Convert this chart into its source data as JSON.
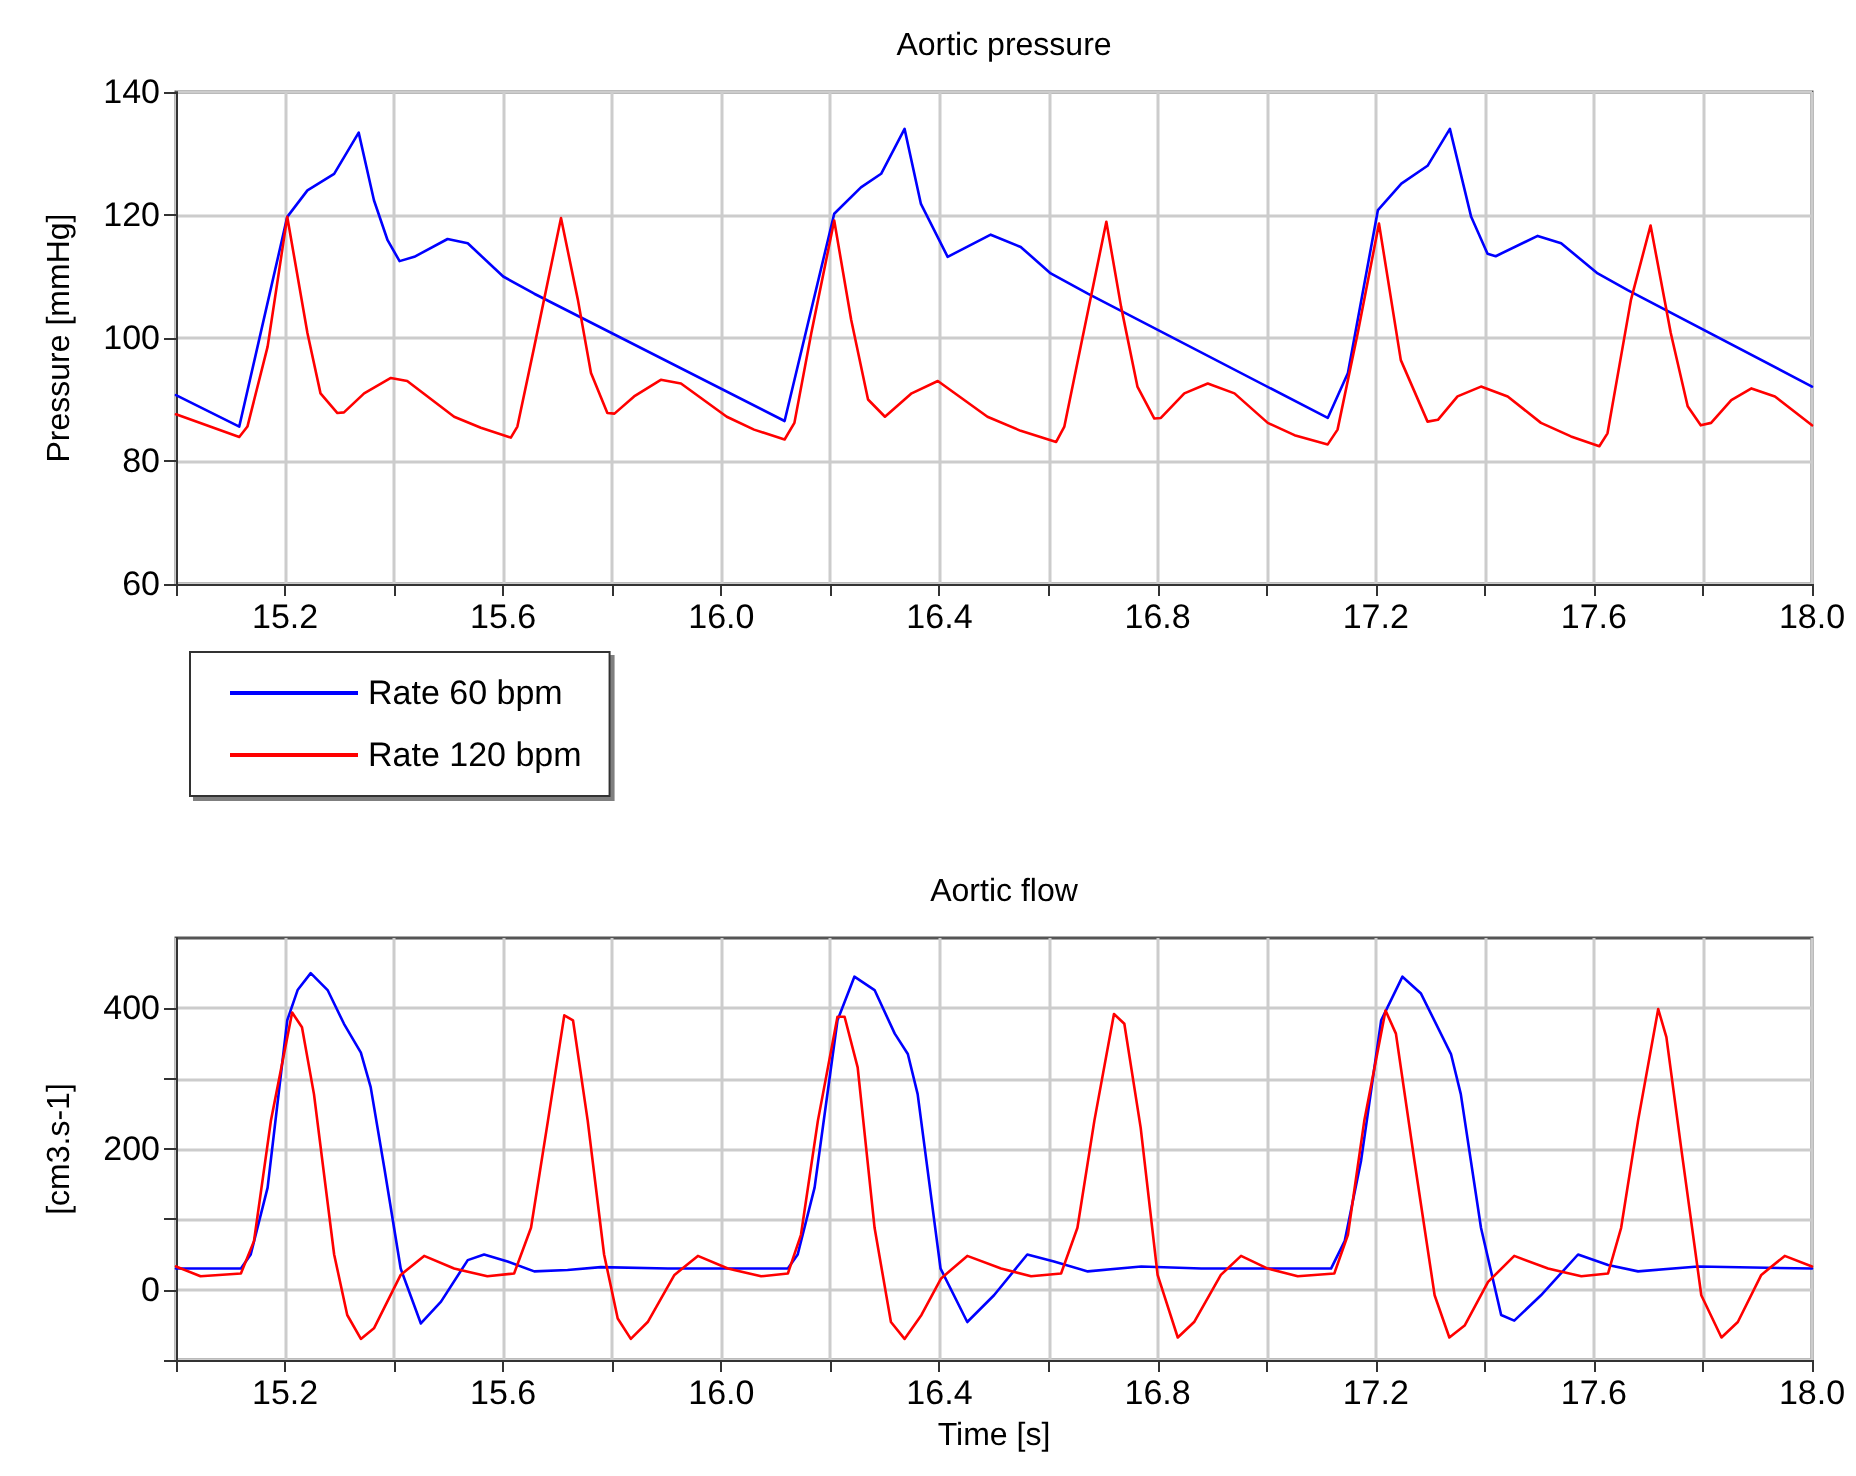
{
  "chart_data": [
    {
      "type": "line",
      "title": "Aortic pressure",
      "ylabel": "Pressure [mmHg]",
      "xlim": [
        15.0,
        18.0
      ],
      "ylim": [
        60,
        140
      ],
      "xticks": [
        {
          "value": 15.0,
          "label": null
        },
        {
          "value": 15.2,
          "label": "15.2"
        },
        {
          "value": 15.4,
          "label": null
        },
        {
          "value": 15.6,
          "label": "15.6"
        },
        {
          "value": 15.8,
          "label": null
        },
        {
          "value": 16.0,
          "label": "16.0"
        },
        {
          "value": 16.2,
          "label": null
        },
        {
          "value": 16.4,
          "label": "16.4"
        },
        {
          "value": 16.6,
          "label": null
        },
        {
          "value": 16.8,
          "label": "16.8"
        },
        {
          "value": 17.0,
          "label": null
        },
        {
          "value": 17.2,
          "label": "17.2"
        },
        {
          "value": 17.4,
          "label": null
        },
        {
          "value": 17.6,
          "label": "17.6"
        },
        {
          "value": 17.8,
          "label": null
        },
        {
          "value": 18.0,
          "label": "18.0"
        }
      ],
      "yticks": [
        60,
        80,
        100,
        120,
        140
      ],
      "grid": true,
      "legend": "bottom left",
      "marker": "none",
      "series": [
        {
          "name": "Rate 60 bpm",
          "color": "#0000ff",
          "x": [
            15.0,
            15.116,
            15.204,
            15.241,
            15.29,
            15.335,
            15.363,
            15.388,
            15.41,
            15.437,
            15.498,
            15.535,
            15.6,
            15.657,
            16.116,
            16.207,
            16.256,
            16.293,
            16.336,
            16.366,
            16.415,
            16.494,
            16.549,
            16.604,
            16.672,
            17.112,
            17.149,
            17.204,
            17.247,
            17.295,
            17.336,
            17.375,
            17.405,
            17.42,
            17.497,
            17.54,
            17.607,
            17.662,
            18.0
          ],
          "values": [
            90.7,
            85.6,
            119.7,
            124.0,
            126.7,
            133.4,
            122.4,
            115.9,
            112.5,
            113.2,
            116.1,
            115.4,
            110.0,
            107.2,
            86.5,
            120.2,
            124.5,
            126.7,
            134.0,
            121.8,
            113.2,
            116.8,
            114.8,
            110.5,
            107.2,
            87.0,
            94.3,
            120.8,
            125.1,
            128.0,
            134.0,
            119.7,
            113.7,
            113.3,
            116.6,
            115.4,
            110.5,
            107.8,
            92.1
          ]
        },
        {
          "name": "Rate 120 bpm",
          "color": "#ff0000",
          "x": [
            15.0,
            15.116,
            15.131,
            15.168,
            15.204,
            15.241,
            15.265,
            15.296,
            15.308,
            15.345,
            15.394,
            15.424,
            15.51,
            15.559,
            15.614,
            15.626,
            15.657,
            15.706,
            15.737,
            15.761,
            15.791,
            15.804,
            15.84,
            15.889,
            15.926,
            16.01,
            16.06,
            16.116,
            16.134,
            16.165,
            16.207,
            16.238,
            16.269,
            16.3,
            16.349,
            16.397,
            16.488,
            16.549,
            16.614,
            16.629,
            16.659,
            16.706,
            16.733,
            16.763,
            16.794,
            16.806,
            16.849,
            16.892,
            16.941,
            17.002,
            17.051,
            17.112,
            17.13,
            17.167,
            17.206,
            17.246,
            17.295,
            17.314,
            17.35,
            17.393,
            17.442,
            17.503,
            17.558,
            17.61,
            17.625,
            17.668,
            17.704,
            17.741,
            17.772,
            17.796,
            17.815,
            17.852,
            17.889,
            17.932,
            18.0
          ],
          "values": [
            87.6,
            83.9,
            85.6,
            98.6,
            119.7,
            100.8,
            91.0,
            87.8,
            87.9,
            91.0,
            93.5,
            93.0,
            87.2,
            85.4,
            83.8,
            85.6,
            98.6,
            119.5,
            106.2,
            94.3,
            87.8,
            87.7,
            90.5,
            93.2,
            92.6,
            87.2,
            85.1,
            83.5,
            86.2,
            100.8,
            119.1,
            103.0,
            90.0,
            87.2,
            91.0,
            93.0,
            87.2,
            84.9,
            83.1,
            85.6,
            98.6,
            118.9,
            105.1,
            92.1,
            86.9,
            87.0,
            91.0,
            92.6,
            91.0,
            86.2,
            84.2,
            82.7,
            85.1,
            100.8,
            118.6,
            96.4,
            86.4,
            86.7,
            90.5,
            92.1,
            90.5,
            86.2,
            84.0,
            82.4,
            84.5,
            106.2,
            118.3,
            100.8,
            88.9,
            85.8,
            86.2,
            89.9,
            91.8,
            90.5,
            85.8
          ]
        }
      ]
    },
    {
      "type": "line",
      "title": "Aortic flow",
      "xlabel": "Time [s]",
      "ylabel": "[cm3.s-1]",
      "xlim": [
        15.0,
        18.0
      ],
      "ylim": [
        -100,
        500
      ],
      "xticks": [
        {
          "value": 15.0,
          "label": null
        },
        {
          "value": 15.2,
          "label": "15.2"
        },
        {
          "value": 15.4,
          "label": null
        },
        {
          "value": 15.6,
          "label": "15.6"
        },
        {
          "value": 15.8,
          "label": null
        },
        {
          "value": 16.0,
          "label": "16.0"
        },
        {
          "value": 16.2,
          "label": null
        },
        {
          "value": 16.4,
          "label": "16.4"
        },
        {
          "value": 16.6,
          "label": null
        },
        {
          "value": 16.8,
          "label": "16.8"
        },
        {
          "value": 17.0,
          "label": null
        },
        {
          "value": 17.2,
          "label": "17.2"
        },
        {
          "value": 17.4,
          "label": null
        },
        {
          "value": 17.6,
          "label": "17.6"
        },
        {
          "value": 17.8,
          "label": null
        },
        {
          "value": 18.0,
          "label": "18.0"
        }
      ],
      "yticks": [
        {
          "value": -100,
          "label": null
        },
        0,
        {
          "value": 100,
          "label": null
        },
        200,
        {
          "value": 300,
          "label": null
        },
        400
      ],
      "grid": true,
      "legend": false,
      "marker": "none",
      "series": [
        {
          "color": "#0000ff",
          "x": [
            15.0,
            15.119,
            15.137,
            15.168,
            15.204,
            15.223,
            15.247,
            15.278,
            15.308,
            15.339,
            15.357,
            15.382,
            15.412,
            15.449,
            15.486,
            15.535,
            15.565,
            15.608,
            15.657,
            15.718,
            15.779,
            15.902,
            16.122,
            16.14,
            16.171,
            16.213,
            16.244,
            16.281,
            16.318,
            16.342,
            16.36,
            16.402,
            16.451,
            16.5,
            16.561,
            16.61,
            16.672,
            16.77,
            16.88,
            17.118,
            17.143,
            17.173,
            17.21,
            17.249,
            17.283,
            17.338,
            17.356,
            17.393,
            17.43,
            17.454,
            17.503,
            17.571,
            17.626,
            17.681,
            17.791,
            18.0
          ],
          "values": [
            30,
            30,
            50,
            145,
            383,
            426,
            450,
            426,
            378,
            337,
            288,
            173,
            30,
            -48,
            -17,
            42,
            50,
            40,
            26,
            28,
            32,
            30,
            30,
            50,
            145,
            383,
            445,
            426,
            364,
            335,
            278,
            30,
            -46,
            -8,
            50,
            40,
            26,
            33,
            30,
            30,
            69,
            183,
            383,
            445,
            421,
            335,
            278,
            88,
            -36,
            -44,
            -8,
            50,
            35,
            26,
            33,
            30
          ]
        },
        {
          "color": "#ff0000",
          "x": [
            15.0,
            15.045,
            15.119,
            15.143,
            15.174,
            15.213,
            15.231,
            15.253,
            15.29,
            15.314,
            15.339,
            15.363,
            15.412,
            15.455,
            15.51,
            15.571,
            15.62,
            15.651,
            15.682,
            15.712,
            15.728,
            15.755,
            15.785,
            15.81,
            15.834,
            15.865,
            15.914,
            15.957,
            16.012,
            16.073,
            16.122,
            16.146,
            16.177,
            16.213,
            16.226,
            16.25,
            16.281,
            16.311,
            16.336,
            16.367,
            16.403,
            16.451,
            16.513,
            16.568,
            16.623,
            16.653,
            16.684,
            16.72,
            16.739,
            16.769,
            16.8,
            16.837,
            16.867,
            16.916,
            16.953,
            17.002,
            17.057,
            17.124,
            17.149,
            17.179,
            17.218,
            17.237,
            17.271,
            17.308,
            17.335,
            17.363,
            17.406,
            17.454,
            17.516,
            17.577,
            17.626,
            17.65,
            17.681,
            17.718,
            17.733,
            17.76,
            17.797,
            17.834,
            17.864,
            17.907,
            17.95,
            18.0
          ],
          "values": [
            33,
            19,
            23,
            69,
            240,
            394,
            373,
            278,
            50,
            -36,
            -70,
            -55,
            21,
            48,
            30,
            19,
            23,
            88,
            240,
            390,
            383,
            240,
            50,
            -41,
            -70,
            -46,
            21,
            48,
            30,
            19,
            23,
            78,
            240,
            388,
            388,
            316,
            88,
            -46,
            -70,
            -36,
            16,
            48,
            30,
            19,
            23,
            88,
            240,
            392,
            378,
            230,
            21,
            -68,
            -46,
            21,
            48,
            30,
            19,
            23,
            78,
            240,
            397,
            364,
            183,
            -8,
            -68,
            -51,
            11,
            48,
            30,
            19,
            23,
            88,
            240,
            399,
            359,
            202,
            -8,
            -68,
            -46,
            21,
            48,
            33
          ]
        }
      ]
    }
  ]
}
